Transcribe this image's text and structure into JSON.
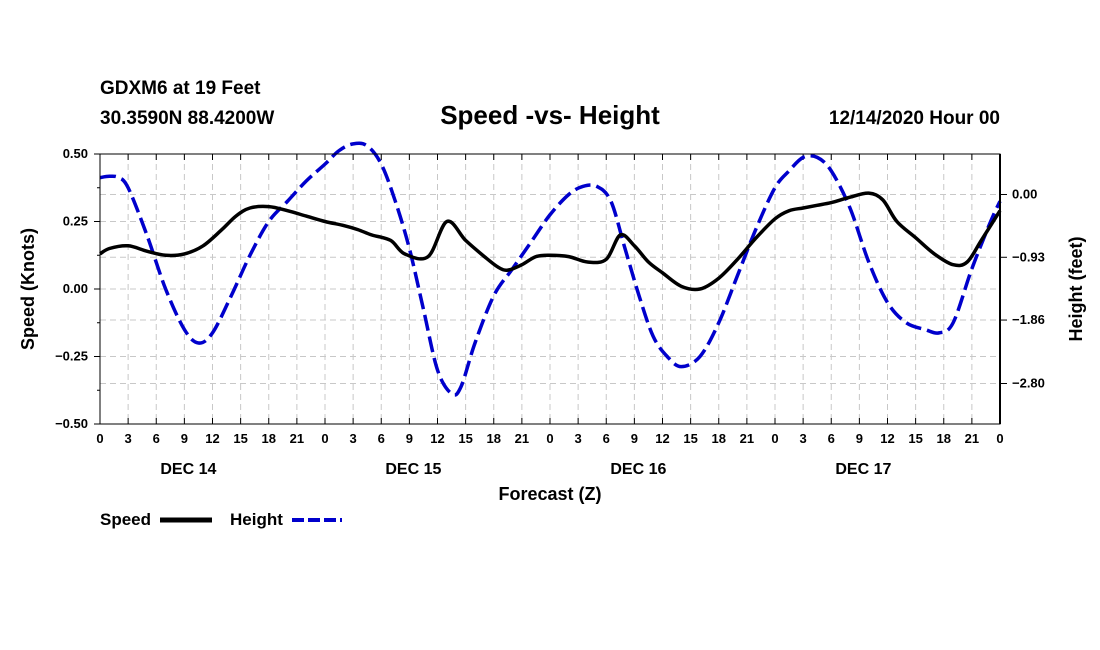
{
  "header": {
    "station": "GDXM6 at 19 Feet",
    "coords": "30.3590N 88.4200W",
    "title": "Speed -vs- Height",
    "run": "12/14/2020 Hour 00"
  },
  "chart_data": {
    "type": "line",
    "title": "Speed -vs- Height",
    "xlabel": "Forecast (Z)",
    "ylabel": "Speed (Knots)",
    "y2label": "Height (feet)",
    "x_unit": "hours since 12/14/2020 00Z",
    "xlim": [
      0,
      96
    ],
    "ylim": [
      -0.5,
      0.5
    ],
    "y2lim": [
      -3.4,
      0.6
    ],
    "grid": true,
    "x_tick_labels": [
      "0",
      "3",
      "6",
      "9",
      "12",
      "15",
      "18",
      "21",
      "0",
      "3",
      "6",
      "9",
      "12",
      "15",
      "18",
      "21",
      "0",
      "3",
      "6",
      "9",
      "12",
      "15",
      "18",
      "21",
      "0",
      "3",
      "6",
      "9",
      "12",
      "15",
      "18",
      "21",
      "0"
    ],
    "y_ticks": [
      -0.5,
      -0.25,
      0.0,
      0.25,
      0.5
    ],
    "y_tick_labels": [
      "−0.50",
      "−0.25",
      "0.00",
      "0.25",
      "0.50"
    ],
    "y2_ticks": [
      -2.8,
      -1.86,
      -0.93,
      0.0
    ],
    "y2_tick_labels": [
      "−2.80",
      "−1.86",
      "−0.93",
      "0.00"
    ],
    "day_labels": [
      {
        "label": "DEC 14",
        "hour": 9
      },
      {
        "label": "DEC 15",
        "hour": 33
      },
      {
        "label": "DEC 16",
        "hour": 57
      },
      {
        "label": "DEC 17",
        "hour": 81
      }
    ],
    "legend_position": "bottom-left",
    "series": [
      {
        "name": "Speed",
        "axis": "left",
        "color": "#000000",
        "dash": "solid",
        "x": [
          0,
          1,
          3,
          5,
          7,
          9,
          11,
          13,
          14.5,
          16,
          18,
          20,
          22,
          24,
          26,
          27.5,
          29,
          31,
          32.5,
          35,
          37,
          39,
          41,
          42.5,
          43.5,
          45,
          46.5,
          48,
          50,
          52,
          54,
          55.5,
          57,
          58.5,
          60,
          62,
          64,
          66,
          68,
          70,
          72,
          73.5,
          75,
          76.5,
          78,
          80,
          82,
          83.5,
          85,
          87,
          89,
          91,
          92.5,
          94,
          96
        ],
        "values": [
          0.13,
          0.15,
          0.16,
          0.14,
          0.125,
          0.13,
          0.16,
          0.22,
          0.27,
          0.3,
          0.305,
          0.29,
          0.27,
          0.25,
          0.235,
          0.22,
          0.2,
          0.18,
          0.13,
          0.12,
          0.25,
          0.18,
          0.12,
          0.08,
          0.07,
          0.09,
          0.12,
          0.125,
          0.12,
          0.1,
          0.11,
          0.2,
          0.16,
          0.1,
          0.06,
          0.01,
          0.0,
          0.04,
          0.11,
          0.19,
          0.26,
          0.29,
          0.3,
          0.31,
          0.32,
          0.34,
          0.355,
          0.33,
          0.25,
          0.19,
          0.13,
          0.09,
          0.1,
          0.18,
          0.29
        ]
      },
      {
        "name": "Height",
        "axis": "right",
        "color": "#0000cc",
        "dash": "dashed",
        "x": [
          0,
          1,
          2,
          3,
          5,
          7,
          9,
          10.5,
          12,
          14,
          16,
          18,
          20,
          22,
          24,
          25.5,
          27,
          28.5,
          30,
          31.5,
          33,
          34.5,
          36,
          37.5,
          38.5,
          40,
          42,
          44,
          46,
          48,
          50,
          51.5,
          53,
          54.5,
          56,
          57.5,
          59,
          60.5,
          62,
          64,
          66,
          68,
          70,
          72,
          73.5,
          75,
          76.5,
          78,
          80,
          82,
          84,
          86,
          88,
          89.5,
          91,
          93,
          95,
          96
        ],
        "values": [
          0.25,
          0.27,
          0.25,
          0.1,
          -0.6,
          -1.4,
          -2.0,
          -2.2,
          -2.05,
          -1.5,
          -0.9,
          -0.4,
          -0.1,
          0.2,
          0.45,
          0.65,
          0.75,
          0.72,
          0.45,
          -0.1,
          -0.8,
          -1.7,
          -2.6,
          -2.95,
          -2.85,
          -2.2,
          -1.5,
          -1.1,
          -0.7,
          -0.3,
          0.0,
          0.12,
          0.12,
          -0.1,
          -0.8,
          -1.5,
          -2.1,
          -2.4,
          -2.55,
          -2.4,
          -1.9,
          -1.2,
          -0.5,
          0.1,
          0.35,
          0.55,
          0.55,
          0.35,
          -0.2,
          -1.0,
          -1.6,
          -1.9,
          -2.0,
          -2.05,
          -1.9,
          -1.1,
          -0.4,
          -0.1
        ]
      }
    ]
  },
  "legend": {
    "speed_label": "Speed",
    "height_label": "Height"
  }
}
